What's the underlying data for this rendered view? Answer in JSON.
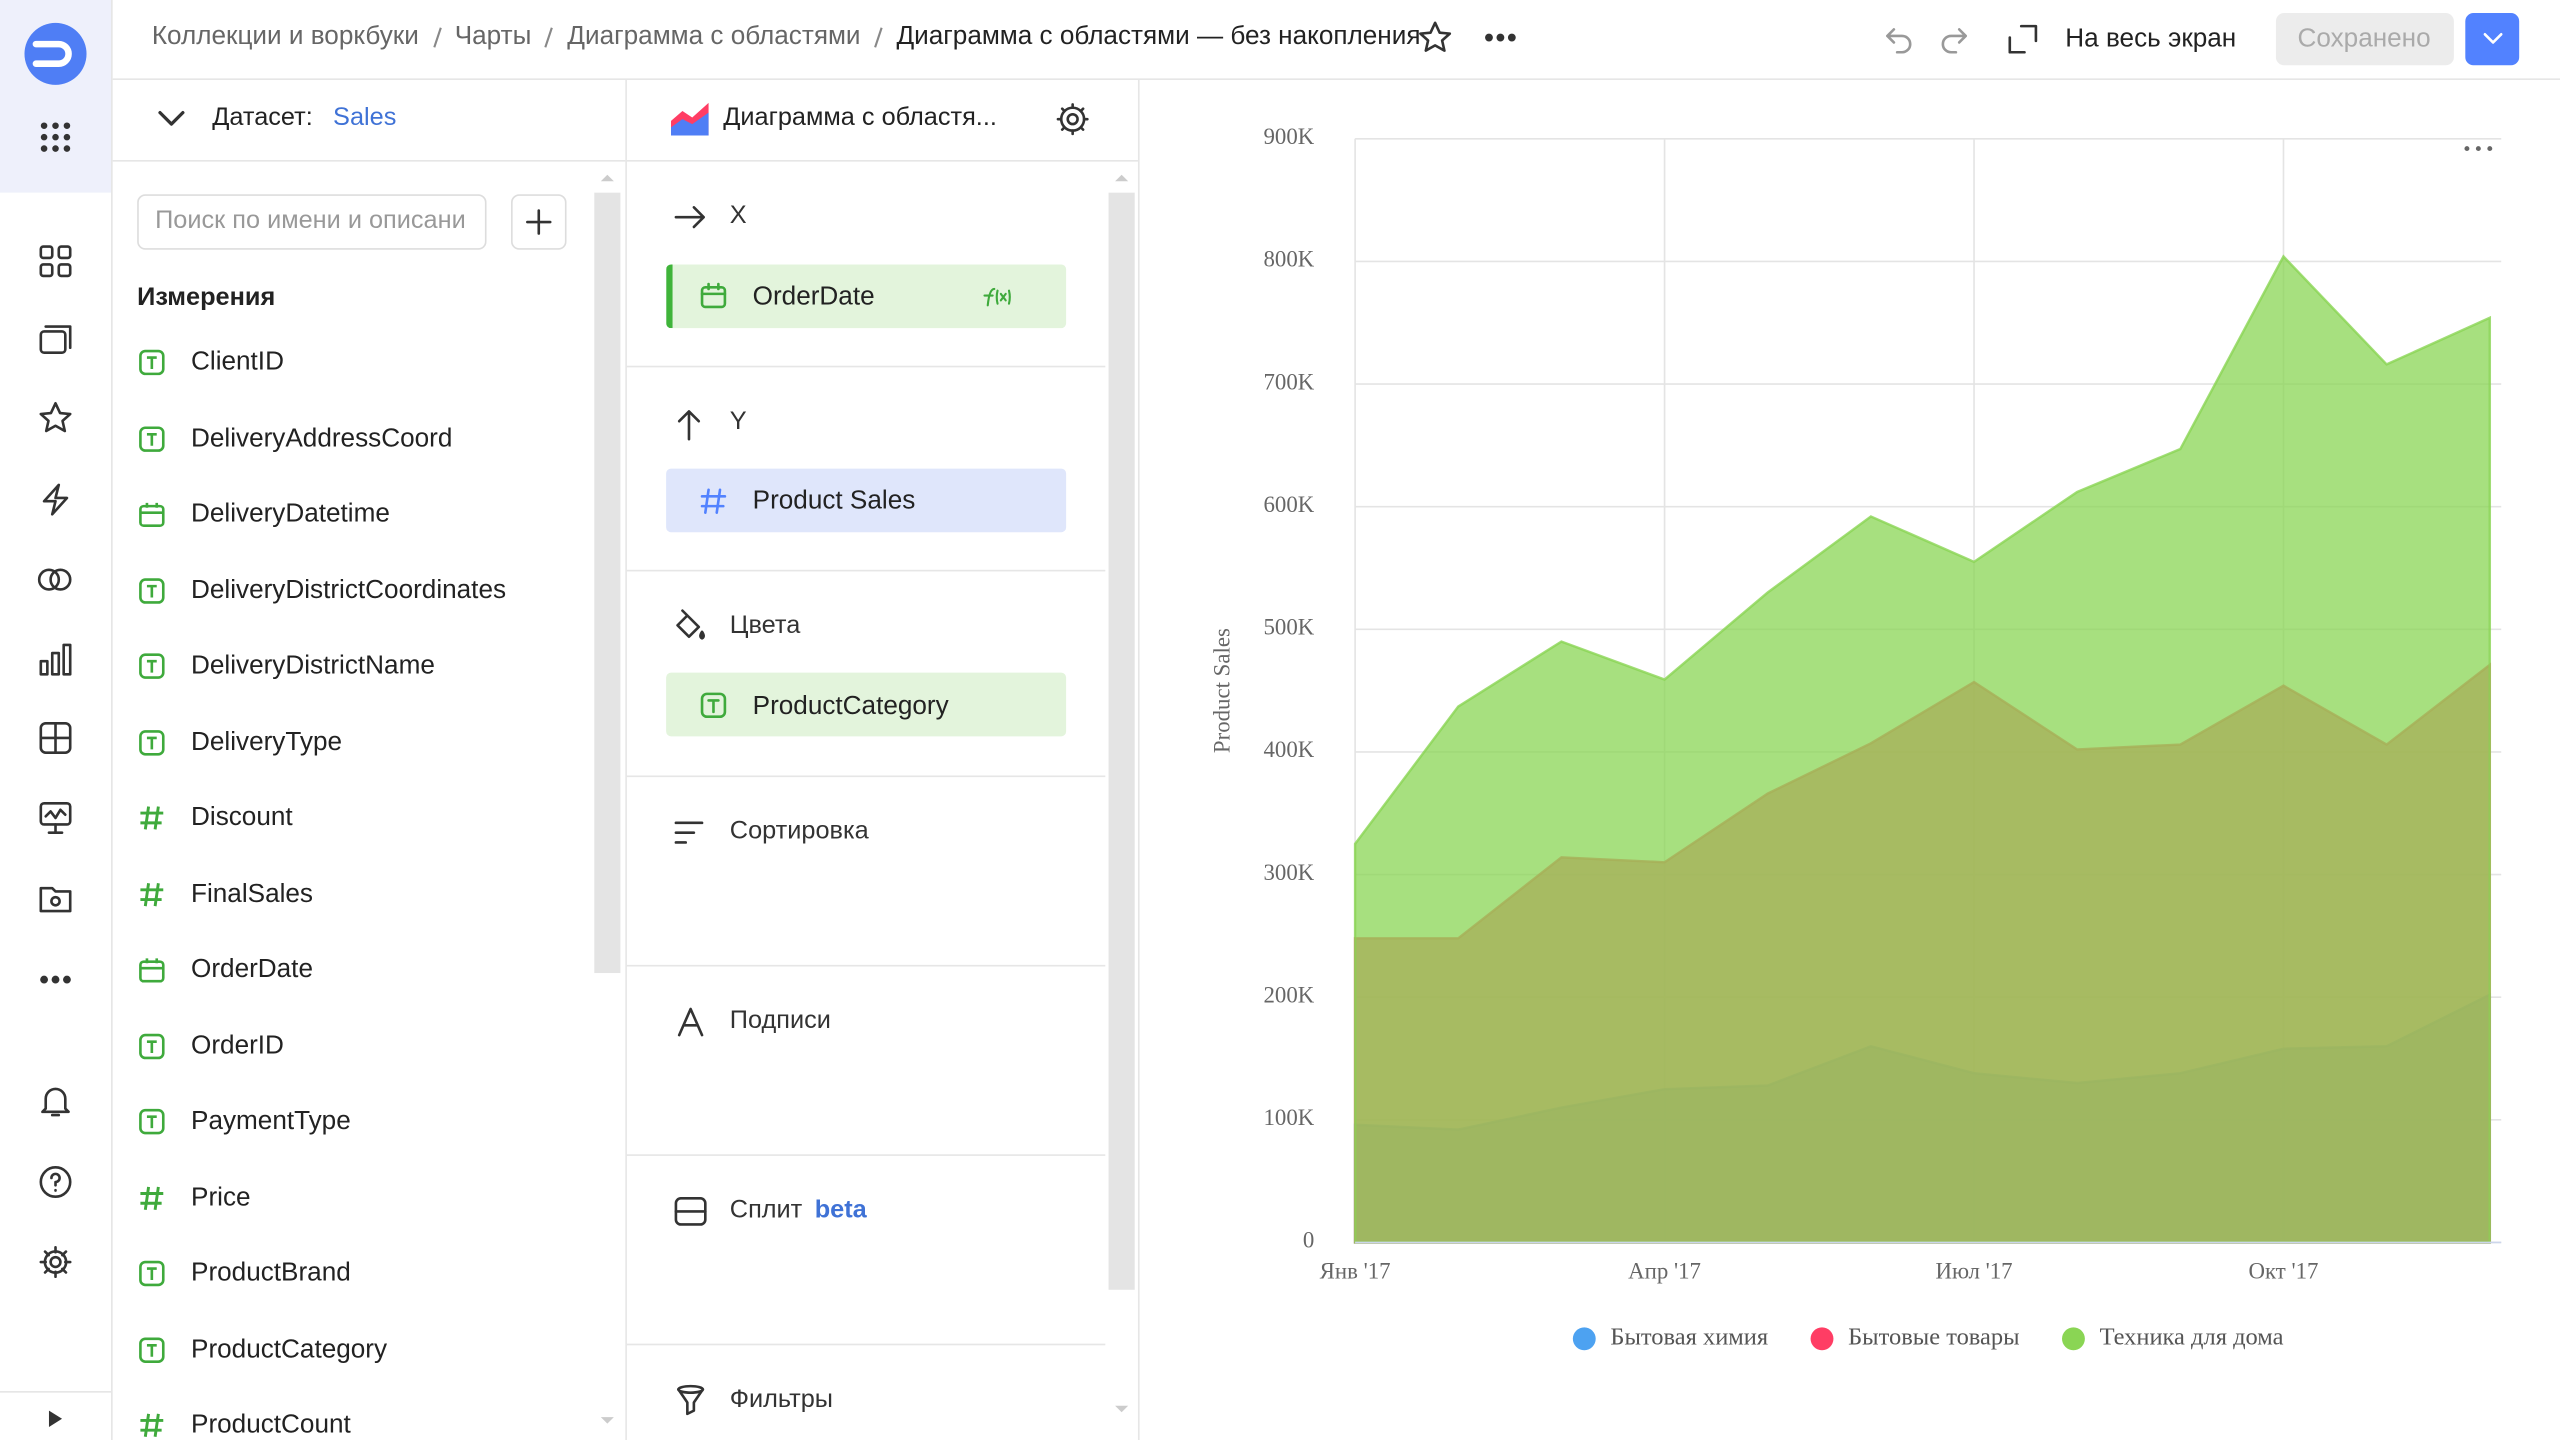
{
  "header": {
    "breadcrumbs": [
      "Коллекции и воркбуки",
      "Чарты",
      "Диаграмма с областями"
    ],
    "title": "Диаграмма с областями — без накопления",
    "fullscreen": "На весь экран",
    "save": "Сохранено"
  },
  "dataset": {
    "label": "Датасет:",
    "name": "Sales",
    "search_placeholder": "Поиск по имени и описани",
    "section": "Измерения",
    "fields": [
      {
        "name": "ClientID",
        "type": "text"
      },
      {
        "name": "DeliveryAddressCoord",
        "type": "text"
      },
      {
        "name": "DeliveryDatetime",
        "type": "date"
      },
      {
        "name": "DeliveryDistrictCoordinates",
        "type": "text"
      },
      {
        "name": "DeliveryDistrictName",
        "type": "text"
      },
      {
        "name": "DeliveryType",
        "type": "text"
      },
      {
        "name": "Discount",
        "type": "number"
      },
      {
        "name": "FinalSales",
        "type": "number"
      },
      {
        "name": "OrderDate",
        "type": "date"
      },
      {
        "name": "OrderID",
        "type": "text"
      },
      {
        "name": "PaymentType",
        "type": "text"
      },
      {
        "name": "Price",
        "type": "number"
      },
      {
        "name": "ProductBrand",
        "type": "text"
      },
      {
        "name": "ProductCategory",
        "type": "text"
      },
      {
        "name": "ProductCount",
        "type": "number"
      }
    ]
  },
  "visualization": {
    "chart_type": "Диаграмма с областя...",
    "x": {
      "title": "X",
      "field": "OrderDate"
    },
    "y": {
      "title": "Y",
      "field": "Product Sales"
    },
    "colors": {
      "title": "Цвета",
      "field": "ProductCategory"
    },
    "sort": {
      "title": "Сортировка"
    },
    "labels": {
      "title": "Подписи"
    },
    "split": {
      "title": "Сплит",
      "badge": "beta"
    },
    "filters": {
      "title": "Фильтры"
    }
  },
  "chart_data": {
    "type": "area",
    "ylabel": "Product Sales",
    "categories": [
      "Янв '17",
      null,
      null,
      "Апр '17",
      null,
      null,
      "Июл '17",
      null,
      null,
      "Окт '17",
      null,
      null
    ],
    "series": [
      {
        "name": "Бытовая химия",
        "color": "#4da2f1",
        "values": [
          96000,
          92000,
          110000,
          125000,
          128000,
          160000,
          138000,
          130000,
          138000,
          158000,
          160000,
          202000
        ]
      },
      {
        "name": "Бытовые товары",
        "color": "#ff3d64",
        "values": [
          248000,
          248000,
          314000,
          310000,
          366000,
          407000,
          457000,
          402000,
          406000,
          454000,
          406000,
          471000
        ]
      },
      {
        "name": "Техника для дома",
        "color": "#8ad554",
        "values": [
          325000,
          437000,
          490000,
          459000,
          530000,
          592000,
          555000,
          612000,
          647000,
          804000,
          716000,
          754000
        ]
      }
    ],
    "ylim": [
      0,
      900000
    ],
    "yticks": [
      0,
      {
        "value": 100000,
        "label": "100K"
      },
      {
        "value": 200000,
        "label": "200K"
      },
      {
        "value": 300000,
        "label": "300K"
      },
      {
        "value": 400000,
        "label": "400K"
      },
      {
        "value": 500000,
        "label": "500K"
      },
      {
        "value": 600000,
        "label": "600K"
      },
      {
        "value": 700000,
        "label": "700K"
      },
      {
        "value": 800000,
        "label": "800K"
      },
      {
        "value": 900000,
        "label": "900K"
      }
    ],
    "grid": true,
    "legend": "bottom"
  }
}
